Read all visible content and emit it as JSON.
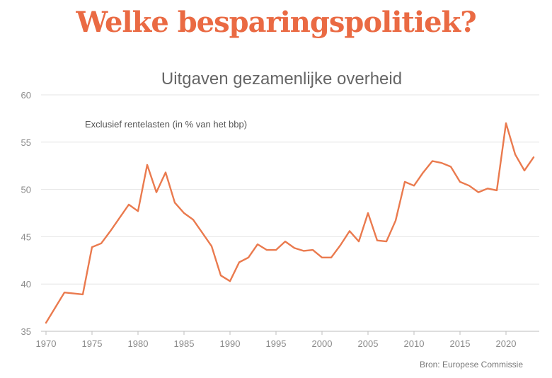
{
  "headline": "Welke besparingspolitiek?",
  "colors": {
    "headline": "#ea6a43",
    "line": "#ea7a4e"
  },
  "chart_data": {
    "type": "line",
    "title": "Uitgaven gezamenlijke overheid",
    "subtitle": "Exclusief rentelasten (in % van het bbp)",
    "source": "Bron: Europese Commissie",
    "xlim": [
      1970,
      2023
    ],
    "ylim": [
      35,
      60
    ],
    "x_ticks": [
      "1970",
      "1975",
      "1980",
      "1985",
      "1990",
      "1995",
      "2000",
      "2005",
      "2010",
      "2015",
      "2020"
    ],
    "y_ticks": [
      "60",
      "55",
      "50",
      "45",
      "40",
      "35"
    ],
    "grid": true,
    "series": [
      {
        "x": [
          1970,
          1971,
          1972,
          1973,
          1974,
          1975,
          1976,
          1977,
          1978,
          1979,
          1980,
          1981,
          1982,
          1983,
          1984,
          1985,
          1986,
          1987,
          1988,
          1989,
          1990,
          1991,
          1992,
          1993,
          1994,
          1995,
          1996,
          1997,
          1998,
          1999,
          2000,
          2001,
          2002,
          2003,
          2004,
          2005,
          2006,
          2007,
          2008,
          2009,
          2010,
          2011,
          2012,
          2013,
          2014,
          2015,
          2016,
          2017,
          2018,
          2019,
          2020,
          2021,
          2022,
          2023
        ],
        "values": [
          35.9,
          37.5,
          39.1,
          39.0,
          38.9,
          43.9,
          44.3,
          45.6,
          47.0,
          48.4,
          47.7,
          52.6,
          49.7,
          51.8,
          48.6,
          47.5,
          46.8,
          45.4,
          44.0,
          40.9,
          40.3,
          42.3,
          42.8,
          44.2,
          43.6,
          43.6,
          44.5,
          43.8,
          43.5,
          43.6,
          42.8,
          42.8,
          44.1,
          45.6,
          44.5,
          47.5,
          44.6,
          44.5,
          46.7,
          50.8,
          50.4,
          51.8,
          53.0,
          52.8,
          52.4,
          50.8,
          50.4,
          49.7,
          50.1,
          49.9,
          57.0,
          53.7,
          52.0,
          53.4
        ]
      }
    ]
  }
}
